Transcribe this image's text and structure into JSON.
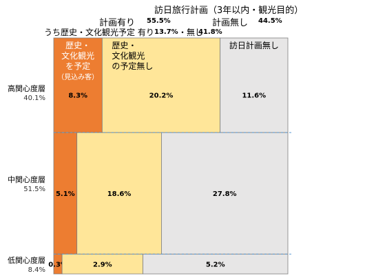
{
  "header": {
    "title": "訪日旅行計画（3年以内・観光目的）",
    "plan_yes_label": "計画有り",
    "plan_yes_value": "55.5%",
    "plan_no_label": "計画無し",
    "plan_no_value": "44.5%",
    "history_line": "うち歴史・文化観光予定 有り",
    "history_yes_value": "13.7%",
    "history_sep": "・無し",
    "history_no_value": "41.8%"
  },
  "chart_data": {
    "type": "mosaic",
    "title": "訪日旅行計画（3年以内・観光目的）",
    "columns": [
      {
        "label": "歴史・\n文化観光\nを予定\n（見込み客）",
        "color": "#ED7D31"
      },
      {
        "label": "歴史・\n文化観光\nの予定無し",
        "color": "#FFE699"
      },
      {
        "label": "訪日計画無し",
        "color": "#E7E6E6"
      }
    ],
    "rows": [
      {
        "label": "高関心度層",
        "share": "40.1%",
        "weight": 40.1,
        "values": [
          8.3,
          20.2,
          11.6
        ],
        "value_labels": [
          "8.3%",
          "20.2%",
          "11.6%"
        ]
      },
      {
        "label": "中関心度層",
        "share": "51.5%",
        "weight": 51.5,
        "values": [
          5.1,
          18.6,
          27.8
        ],
        "value_labels": [
          "5.1%",
          "18.6%",
          "27.8%"
        ]
      },
      {
        "label": "低関心度層",
        "share": "8.4%",
        "weight": 8.4,
        "values": [
          0.3,
          2.9,
          5.2
        ],
        "value_labels": [
          "0.3%",
          "2.9%",
          "5.2%"
        ]
      }
    ],
    "colors": {
      "border": "#7F7F7F",
      "divider": "#5B9BD5"
    }
  }
}
